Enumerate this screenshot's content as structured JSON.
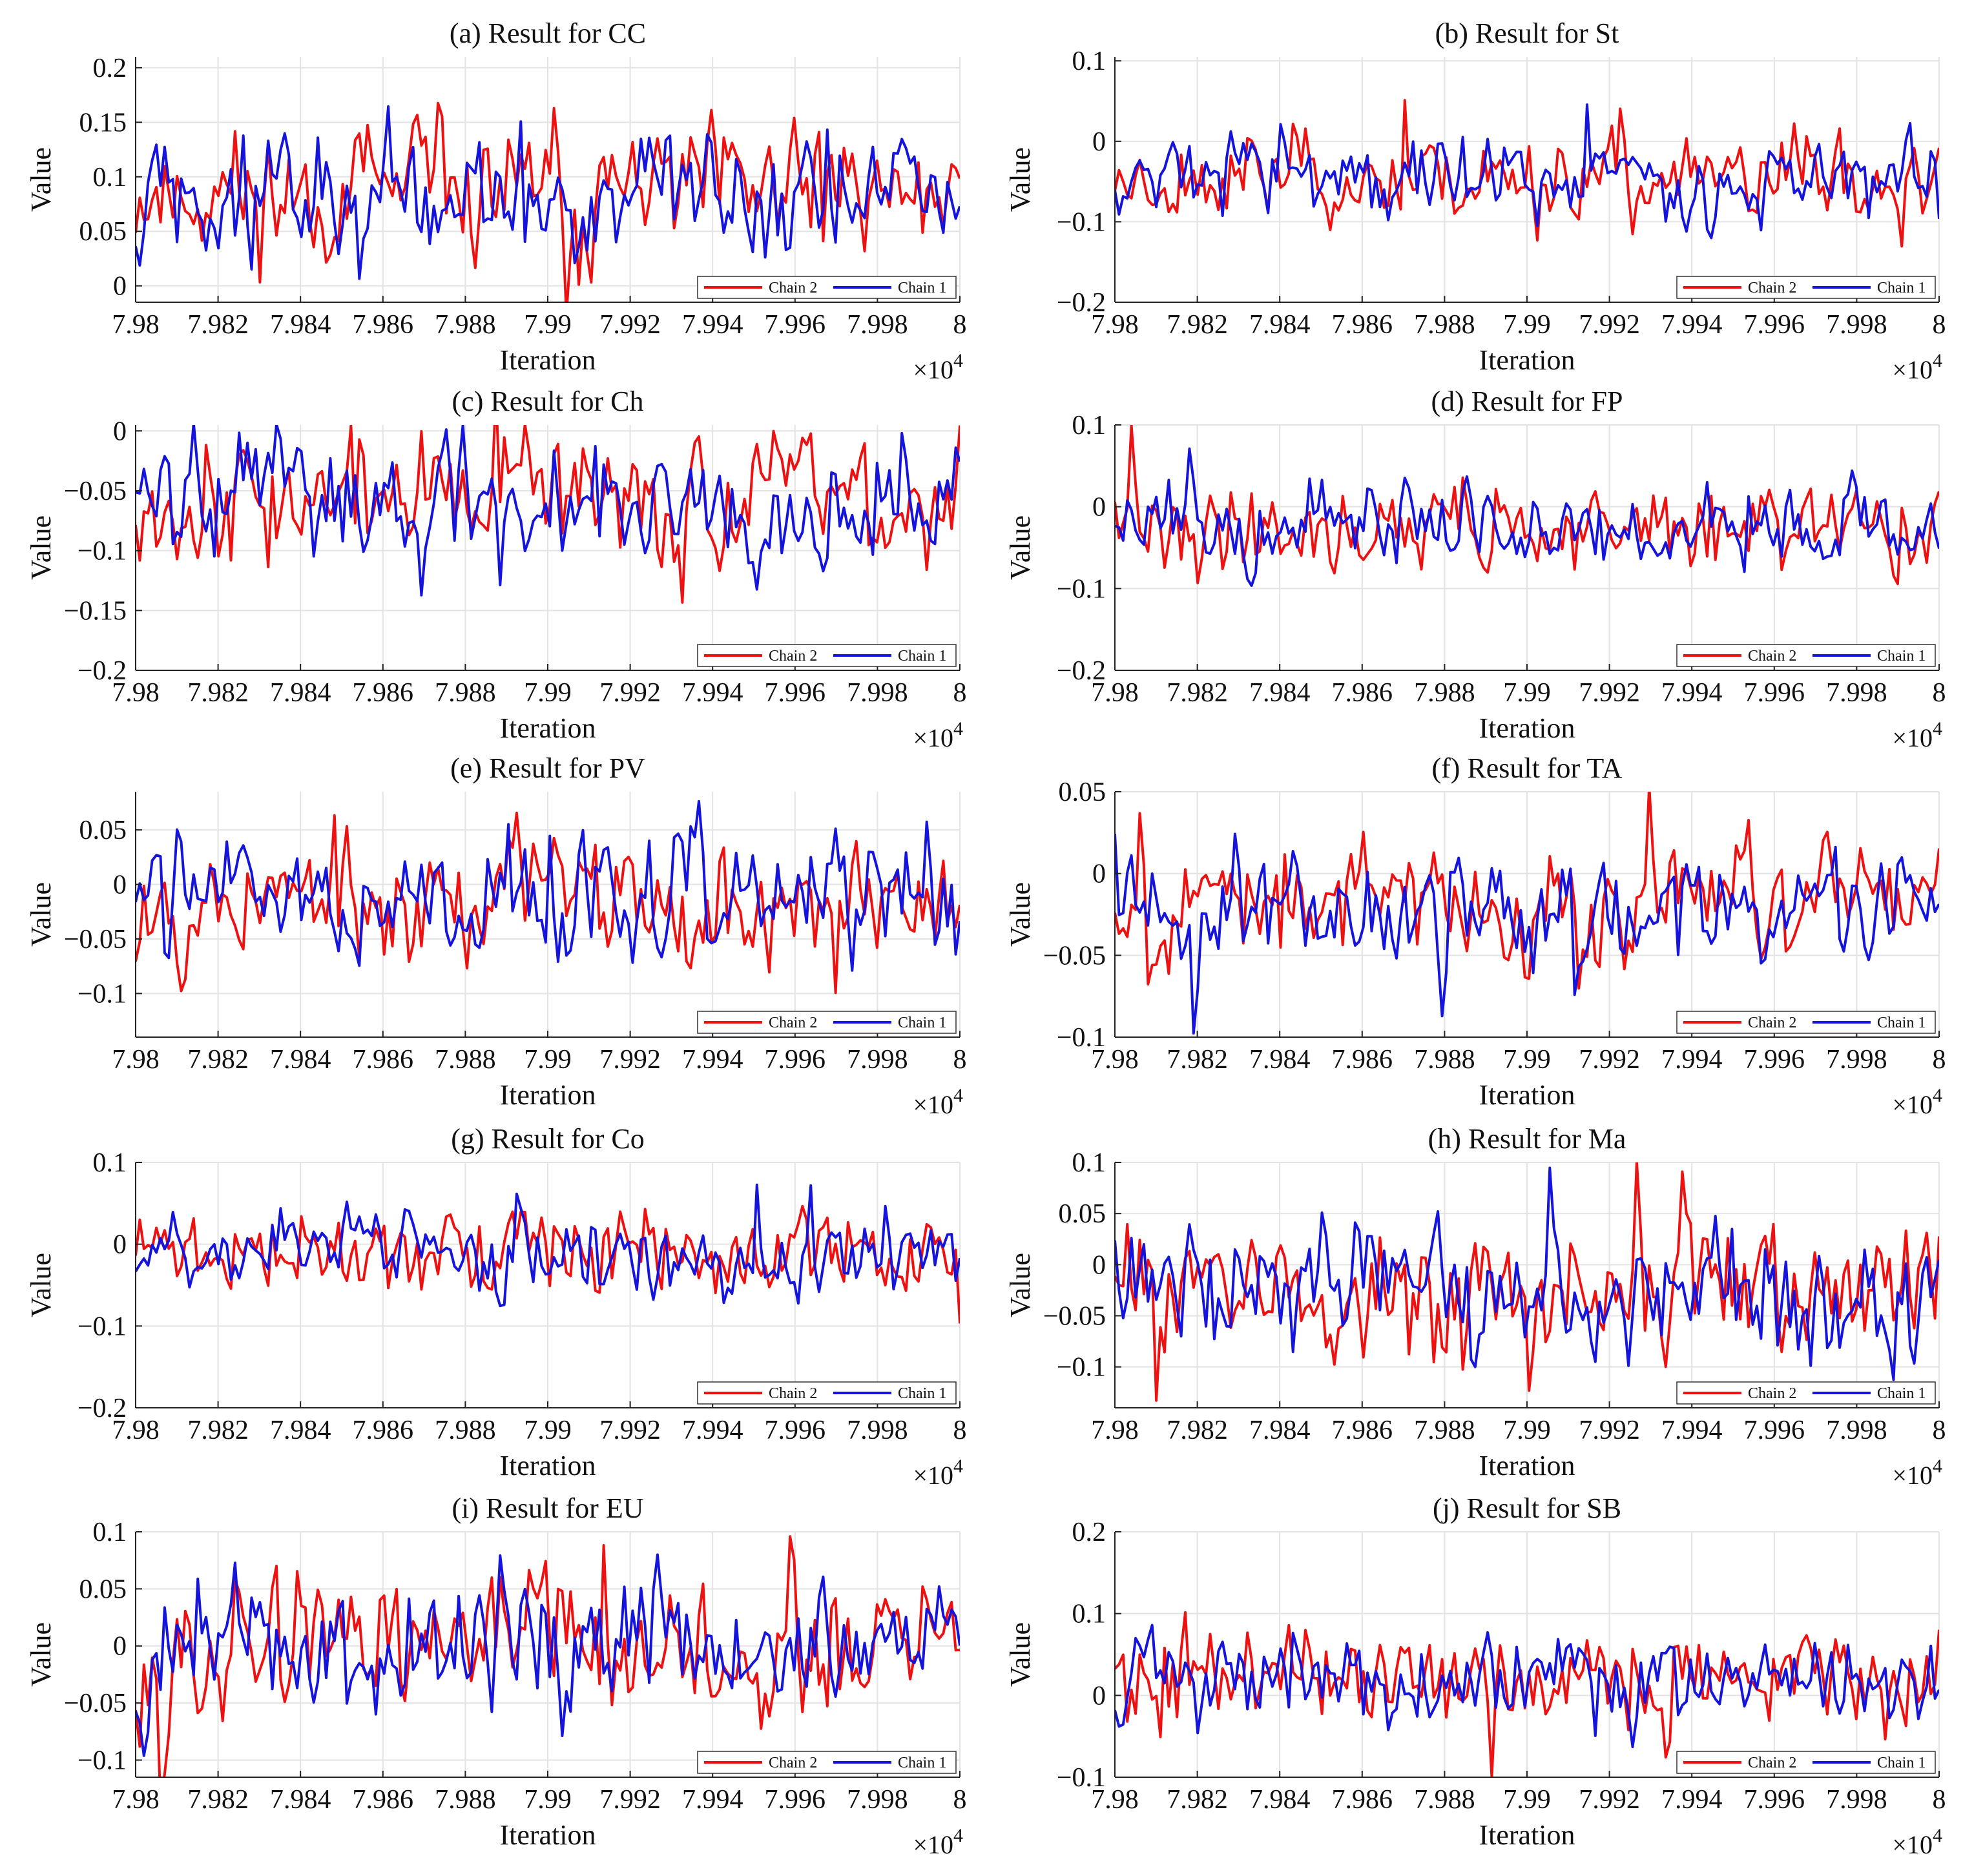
{
  "figure": {
    "x_axis": {
      "label": "Iteration",
      "multiplier_base": "×10",
      "multiplier_exp": "4",
      "ticks": [
        7.98,
        7.982,
        7.984,
        7.986,
        7.988,
        7.99,
        7.992,
        7.994,
        7.996,
        7.998,
        8
      ],
      "tick_labels": [
        "7.98",
        "7.982",
        "7.984",
        "7.986",
        "7.988",
        "7.99",
        "7.992",
        "7.994",
        "7.996",
        "7.998",
        "8"
      ],
      "range": [
        7.98,
        8.0
      ]
    },
    "y_axis_label": "Value",
    "legend": [
      "Chain 2",
      "Chain 1"
    ],
    "colors": {
      "chain2": "#ee1111",
      "chain1": "#1414dd",
      "grid": "#e3e3e3",
      "axis": "#222222"
    }
  },
  "chart_data": [
    {
      "type": "line",
      "id": "a",
      "title": "(a)  Result for CC",
      "ylim": [
        -0.015,
        0.21
      ],
      "yticks": [
        0,
        0.05,
        0.1,
        0.15,
        0.2
      ],
      "ytick_labels": [
        "0",
        "0.05",
        "0.1",
        "0.15",
        "0.2"
      ],
      "mean": 0.085,
      "spread": 0.036,
      "seed": 11,
      "series": [
        {
          "name": "Chain 2",
          "color": "#ee1111"
        },
        {
          "name": "Chain 1",
          "color": "#1414dd"
        }
      ]
    },
    {
      "type": "line",
      "id": "b",
      "title": "(b)  Result for St",
      "ylim": [
        -0.2,
        0.105
      ],
      "yticks": [
        -0.2,
        -0.1,
        0,
        0.1
      ],
      "ytick_labels": [
        "−0.2",
        "−0.1",
        "0",
        "0.1"
      ],
      "mean": -0.045,
      "spread": 0.032,
      "seed": 23,
      "series": [
        {
          "name": "Chain 2",
          "color": "#ee1111"
        },
        {
          "name": "Chain 1",
          "color": "#1414dd"
        }
      ]
    },
    {
      "type": "line",
      "id": "c",
      "title": "(c)  Result for Ch",
      "ylim": [
        -0.2,
        0.005
      ],
      "yticks": [
        -0.2,
        -0.15,
        -0.1,
        -0.05,
        0
      ],
      "ytick_labels": [
        "−0.2",
        "−0.15",
        "−0.1",
        "−0.05",
        "0"
      ],
      "mean": -0.055,
      "spread": 0.032,
      "seed": 37,
      "series": [
        {
          "name": "Chain 2",
          "color": "#ee1111"
        },
        {
          "name": "Chain 1",
          "color": "#1414dd"
        }
      ]
    },
    {
      "type": "line",
      "id": "d",
      "title": "(d)  Result for FP",
      "ylim": [
        -0.2,
        0.1
      ],
      "yticks": [
        -0.2,
        -0.1,
        0,
        0.1
      ],
      "ytick_labels": [
        "−0.2",
        "−0.1",
        "0",
        "0.1"
      ],
      "mean": -0.025,
      "spread": 0.03,
      "seed": 41,
      "series": [
        {
          "name": "Chain 2",
          "color": "#ee1111"
        },
        {
          "name": "Chain 1",
          "color": "#1414dd"
        }
      ]
    },
    {
      "type": "line",
      "id": "e",
      "title": "(e)  Result for PV",
      "ylim": [
        -0.14,
        0.085
      ],
      "yticks": [
        -0.1,
        -0.05,
        0,
        0.05
      ],
      "ytick_labels": [
        "−0.1",
        "−0.05",
        "0",
        "0.05"
      ],
      "mean": -0.012,
      "spread": 0.035,
      "seed": 53,
      "series": [
        {
          "name": "Chain 2",
          "color": "#ee1111"
        },
        {
          "name": "Chain 1",
          "color": "#1414dd"
        }
      ]
    },
    {
      "type": "line",
      "id": "f",
      "title": "(f)  Result for TA",
      "ylim": [
        -0.1,
        0.05
      ],
      "yticks": [
        -0.1,
        -0.05,
        0,
        0.05
      ],
      "ytick_labels": [
        "−0.1",
        "−0.05",
        "0",
        "0.05"
      ],
      "mean": -0.018,
      "spread": 0.02,
      "seed": 67,
      "series": [
        {
          "name": "Chain 2",
          "color": "#ee1111"
        },
        {
          "name": "Chain 1",
          "color": "#1414dd"
        }
      ]
    },
    {
      "type": "line",
      "id": "g",
      "title": "(g)  Result for Co",
      "ylim": [
        -0.2,
        0.1
      ],
      "yticks": [
        -0.2,
        -0.1,
        0,
        0.1
      ],
      "ytick_labels": [
        "−0.2",
        "−0.1",
        "0",
        "0.1"
      ],
      "mean": -0.01,
      "spread": 0.03,
      "seed": 71,
      "series": [
        {
          "name": "Chain 2",
          "color": "#ee1111"
        },
        {
          "name": "Chain 1",
          "color": "#1414dd"
        }
      ]
    },
    {
      "type": "line",
      "id": "h",
      "title": "(h)  Result for Ma",
      "ylim": [
        -0.14,
        0.1
      ],
      "yticks": [
        -0.1,
        -0.05,
        0,
        0.05,
        0.1
      ],
      "ytick_labels": [
        "−0.1",
        "−0.05",
        "0",
        "0.05",
        "0.1"
      ],
      "mean": -0.025,
      "spread": 0.038,
      "seed": 83,
      "series": [
        {
          "name": "Chain 2",
          "color": "#ee1111"
        },
        {
          "name": "Chain 1",
          "color": "#1414dd"
        }
      ]
    },
    {
      "type": "line",
      "id": "i",
      "title": "(i)  Result for EU",
      "ylim": [
        -0.115,
        0.1
      ],
      "yticks": [
        -0.1,
        -0.05,
        0,
        0.05,
        0.1
      ],
      "ytick_labels": [
        "−0.1",
        "−0.05",
        "0",
        "0.05",
        "0.1"
      ],
      "mean": -0.005,
      "spread": 0.035,
      "seed": 97,
      "series": [
        {
          "name": "Chain 2",
          "color": "#ee1111"
        },
        {
          "name": "Chain 1",
          "color": "#1414dd"
        }
      ]
    },
    {
      "type": "line",
      "id": "j",
      "title": "(j)  Result for SB",
      "ylim": [
        -0.1,
        0.2
      ],
      "yticks": [
        -0.1,
        0,
        0.1,
        0.2
      ],
      "ytick_labels": [
        "−0.1",
        "0",
        "0.1",
        "0.2"
      ],
      "mean": 0.022,
      "spread": 0.035,
      "seed": 101,
      "series": [
        {
          "name": "Chain 2",
          "color": "#ee1111"
        },
        {
          "name": "Chain 1",
          "color": "#1414dd"
        }
      ]
    }
  ]
}
